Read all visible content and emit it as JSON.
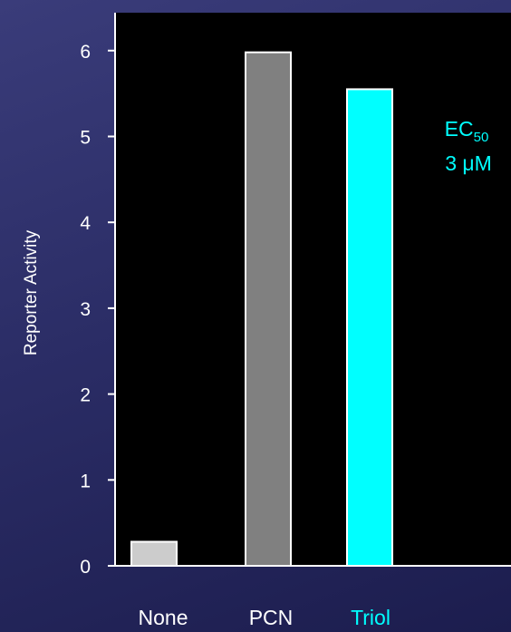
{
  "chart_data": {
    "type": "bar",
    "categories": [
      "None",
      "PCN",
      "Triol"
    ],
    "values": [
      0.28,
      5.98,
      5.55
    ],
    "bar_colors": [
      "#cccccc",
      "#808080",
      "#00ffff"
    ],
    "category_label_colors": [
      "#ffffff",
      "#ffffff",
      "#00ffff"
    ],
    "title": "",
    "xlabel": "",
    "ylabel": "Reporter Activity",
    "ylim": [
      0,
      6.3
    ],
    "yticks": [
      0,
      1,
      2,
      3,
      4,
      5,
      6
    ],
    "grid": false,
    "plot_background": "#000000",
    "annotation": {
      "line1_main": "EC",
      "line1_sub": "50",
      "line2": "3 μM",
      "color": "#00ffff"
    }
  }
}
